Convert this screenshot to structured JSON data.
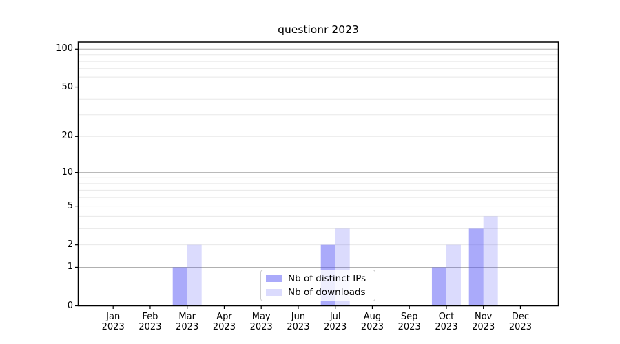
{
  "chart_data": {
    "type": "bar",
    "title": "questionr 2023",
    "categories": [
      "Jan 2023",
      "Feb 2023",
      "Mar 2023",
      "Apr 2023",
      "May 2023",
      "Jun 2023",
      "Jul 2023",
      "Aug 2023",
      "Sep 2023",
      "Oct 2023",
      "Nov 2023",
      "Dec 2023"
    ],
    "series": [
      {
        "name": "Nb of distinct IPs",
        "color": "rgba(85,85,245,0.5)",
        "values": [
          0,
          0,
          1,
          0,
          0,
          0,
          2,
          0,
          0,
          1,
          3,
          0
        ]
      },
      {
        "name": "Nb of downloads",
        "color": "rgba(85,85,245,0.21)",
        "values": [
          0,
          0,
          2,
          0,
          0,
          0,
          3,
          0,
          0,
          2,
          4,
          0
        ]
      }
    ],
    "yscale": "log10(1+x)",
    "y_tick_labels": [
      0,
      1,
      2,
      5,
      10,
      20,
      50,
      100
    ],
    "y_major_gridlines": [
      1,
      10,
      100
    ],
    "y_minor_gridlines": [
      2,
      3,
      4,
      5,
      6,
      7,
      8,
      9,
      20,
      30,
      40,
      50,
      60,
      70,
      80,
      90
    ],
    "ylim": [
      0,
      113
    ],
    "legend_position": "lower center",
    "grid_on": true,
    "colors": {
      "major_grid": "#b0b0b0",
      "minor_grid": "#e8e8e8",
      "axis": "#000000",
      "legend_border": "#cccccc"
    }
  }
}
